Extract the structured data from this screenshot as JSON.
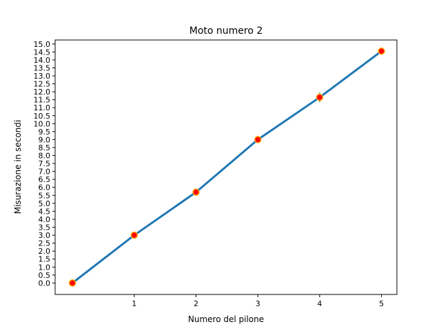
{
  "chart_data": {
    "type": "line",
    "title": "Moto numero 2",
    "xlabel": "Numero del pilone",
    "ylabel": "Misurazione in secondi",
    "x": [
      0,
      1,
      2,
      3,
      4,
      5
    ],
    "x_ticks": [
      1,
      2,
      3,
      4,
      5
    ],
    "x_tick_labels": [
      "1",
      "2",
      "3",
      "4",
      "5"
    ],
    "xlim": [
      -0.28,
      5.25
    ],
    "ylim": [
      -0.72,
      15.25
    ],
    "y_ticks": [
      0.0,
      0.5,
      1.0,
      1.5,
      2.0,
      2.5,
      3.0,
      3.5,
      4.0,
      4.5,
      5.0,
      5.5,
      6.0,
      6.5,
      7.0,
      7.5,
      8.0,
      8.5,
      9.0,
      9.5,
      10.0,
      10.5,
      11.0,
      11.5,
      12.0,
      12.5,
      13.0,
      13.5,
      14.0,
      14.5,
      15.0
    ],
    "y_tick_labels": [
      "0.0",
      "0.5",
      "1.0",
      "1.5",
      "2.0",
      "2.5",
      "3.0",
      "3.5",
      "4.0",
      "4.5",
      "5.0",
      "5.5",
      "6.0",
      "6.5",
      "7.0",
      "7.5",
      "8.0",
      "8.5",
      "9.0",
      "9.5",
      "10.0",
      "10.5",
      "11.0",
      "11.5",
      "12.0",
      "12.5",
      "13.0",
      "13.5",
      "14.0",
      "14.5",
      "15.0"
    ],
    "grid": false,
    "series": [
      {
        "values": [
          0.0,
          3.0,
          5.7,
          9.0,
          11.65,
          14.55
        ],
        "error": [
          0.0,
          0.05,
          0.05,
          0.05,
          0.3,
          0.05
        ],
        "line_color": "#1f77b4",
        "marker_face_color": "#ff0000",
        "marker_edge_color": "#ffa500",
        "error_color": "#2ca02c"
      }
    ]
  }
}
